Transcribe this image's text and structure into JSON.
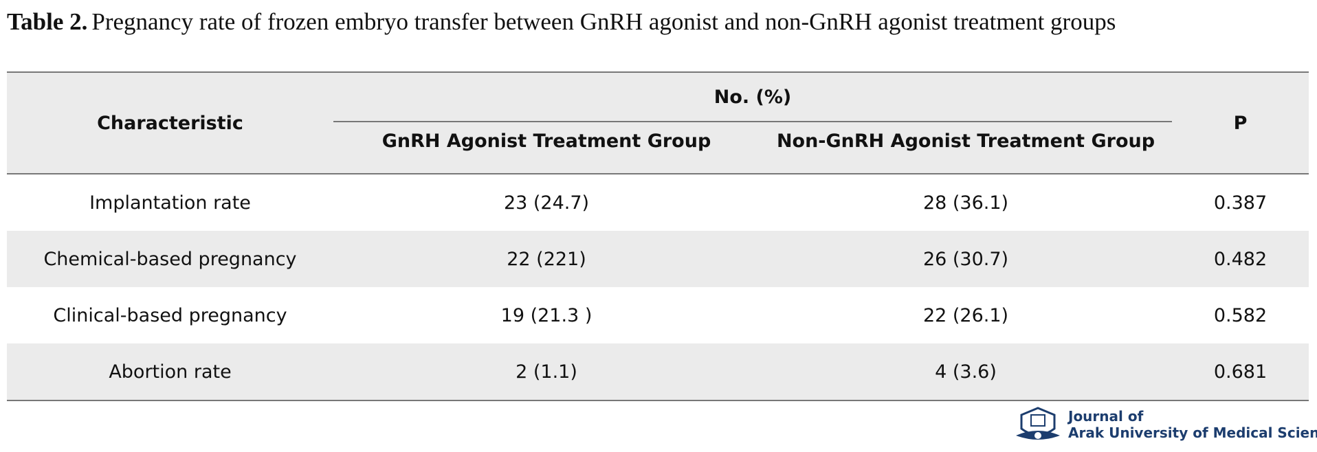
{
  "caption": {
    "label": "Table 2.",
    "text": "Pregnancy rate of frozen embryo transfer between GnRH agonist and non-GnRH agonist treatment groups"
  },
  "table": {
    "header": {
      "characteristic": "Characteristic",
      "group": "No. (%)",
      "col1": "GnRH Agonist Treatment Group",
      "col2": "Non-GnRH Agonist Treatment Group",
      "p": "P"
    },
    "rows": [
      [
        "Implantation rate",
        "23 (24.7)",
        "28 (36.1)",
        "0.387"
      ],
      [
        "Chemical-based pregnancy",
        "22 (221)",
        "26 (30.7)",
        "0.482"
      ],
      [
        "Clinical-based pregnancy",
        "19 (21.3 )",
        "22 (26.1)",
        "0.582"
      ],
      [
        "Abortion rate",
        "2 (1.1)",
        "4 (3.6)",
        "0.681"
      ]
    ]
  },
  "logo": {
    "line1": "Journal of",
    "line2": "Arak University of Medical Sciences"
  }
}
